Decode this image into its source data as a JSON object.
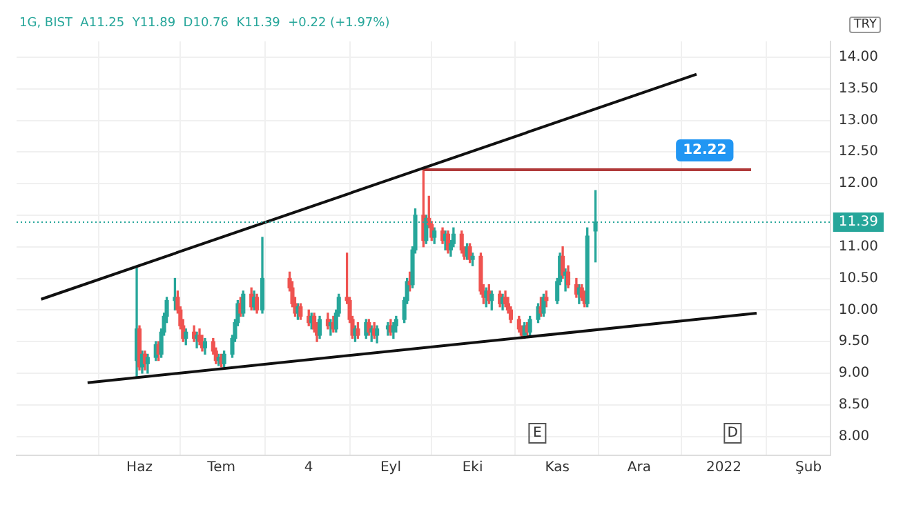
{
  "chart_data": {
    "type": "candlestick",
    "subtitle": "1G, BIST  A11.25  Y11.89  D10.76  K11.39  +0.22 (+1.97%)",
    "ylabel": "TRY",
    "x": [
      "2021-05-31",
      "2021-06-01",
      "2021-06-02",
      "2021-06-03",
      "2021-06-04",
      "2021-06-07",
      "2021-06-08",
      "2021-06-09",
      "2021-06-10",
      "2021-06-11",
      "2021-06-14",
      "2021-06-15",
      "2021-06-16",
      "2021-06-17",
      "2021-06-18",
      "2021-06-21",
      "2021-06-22",
      "2021-06-23",
      "2021-06-24",
      "2021-06-25",
      "2021-06-28",
      "2021-06-29",
      "2021-06-30",
      "2021-07-01",
      "2021-07-02",
      "2021-07-05",
      "2021-07-06",
      "2021-07-07",
      "2021-07-08",
      "2021-07-09",
      "2021-07-12",
      "2021-07-13",
      "2021-07-14",
      "2021-07-16",
      "2021-07-26",
      "2021-07-27",
      "2021-07-28",
      "2021-07-29",
      "2021-07-30",
      "2021-08-02",
      "2021-08-03",
      "2021-08-04",
      "2021-08-05",
      "2021-08-06",
      "2021-08-09",
      "2021-08-10",
      "2021-08-11",
      "2021-08-12",
      "2021-08-13",
      "2021-08-16",
      "2021-08-17",
      "2021-08-18",
      "2021-08-19",
      "2021-08-20",
      "2021-08-23",
      "2021-08-24",
      "2021-08-25",
      "2021-08-26",
      "2021-08-27",
      "2021-08-31",
      "2021-09-01",
      "2021-09-02",
      "2021-09-03",
      "2021-09-06",
      "2021-09-07",
      "2021-09-08",
      "2021-09-09",
      "2021-09-10",
      "2021-09-13",
      "2021-09-14",
      "2021-09-15",
      "2021-09-16",
      "2021-09-17",
      "2021-09-20",
      "2021-09-21",
      "2021-09-22",
      "2021-09-23",
      "2021-09-24",
      "2021-09-27",
      "2021-09-28",
      "2021-09-29",
      "2021-09-30",
      "2021-10-01",
      "2021-10-04",
      "2021-10-05",
      "2021-10-06",
      "2021-10-07",
      "2021-10-08",
      "2021-10-11",
      "2021-10-12",
      "2021-10-13",
      "2021-10-14",
      "2021-10-15",
      "2021-10-18",
      "2021-10-19",
      "2021-10-20",
      "2021-10-21",
      "2021-10-22",
      "2021-10-25",
      "2021-10-26",
      "2021-10-27",
      "2021-10-28",
      "2021-11-01",
      "2021-11-02",
      "2021-11-03",
      "2021-11-04",
      "2021-11-05",
      "2021-11-08",
      "2021-11-09",
      "2021-11-10",
      "2021-11-11",
      "2021-11-12",
      "2021-11-15"
    ],
    "ohlc": [
      [
        9.2,
        10.66,
        8.95,
        9.7
      ],
      [
        9.7,
        9.75,
        9.05,
        9.1
      ],
      [
        9.1,
        9.35,
        9.0,
        9.3
      ],
      [
        9.3,
        9.35,
        9.05,
        9.15
      ],
      [
        9.15,
        9.3,
        9.0,
        9.25
      ],
      [
        9.25,
        9.5,
        9.2,
        9.45
      ],
      [
        9.45,
        9.5,
        9.2,
        9.3
      ],
      [
        9.3,
        9.7,
        9.25,
        9.65
      ],
      [
        9.65,
        9.95,
        9.6,
        9.9
      ],
      [
        9.9,
        10.2,
        9.8,
        10.15
      ],
      [
        10.15,
        10.5,
        10.0,
        10.2
      ],
      [
        10.2,
        10.3,
        9.95,
        10.0
      ],
      [
        10.0,
        10.05,
        9.7,
        9.75
      ],
      [
        9.75,
        9.85,
        9.5,
        9.55
      ],
      [
        9.55,
        9.7,
        9.45,
        9.65
      ],
      [
        9.65,
        9.75,
        9.5,
        9.55
      ],
      [
        9.55,
        9.65,
        9.4,
        9.6
      ],
      [
        9.6,
        9.7,
        9.45,
        9.5
      ],
      [
        9.5,
        9.6,
        9.35,
        9.4
      ],
      [
        9.4,
        9.55,
        9.3,
        9.5
      ],
      [
        9.5,
        9.55,
        9.3,
        9.35
      ],
      [
        9.35,
        9.4,
        9.15,
        9.2
      ],
      [
        9.2,
        9.3,
        9.12,
        9.25
      ],
      [
        9.25,
        9.3,
        9.1,
        9.15
      ],
      [
        9.15,
        9.35,
        9.1,
        9.3
      ],
      [
        9.3,
        9.6,
        9.25,
        9.55
      ],
      [
        9.55,
        9.85,
        9.5,
        9.8
      ],
      [
        9.8,
        10.15,
        9.75,
        10.1
      ],
      [
        10.1,
        10.2,
        9.9,
        9.95
      ],
      [
        9.95,
        10.3,
        9.9,
        10.25
      ],
      [
        10.25,
        10.35,
        10.0,
        10.05
      ],
      [
        10.05,
        10.3,
        10.0,
        10.2
      ],
      [
        10.2,
        10.25,
        9.95,
        10.0
      ],
      [
        10.0,
        11.15,
        9.95,
        10.5
      ],
      [
        10.5,
        10.6,
        10.3,
        10.35
      ],
      [
        10.35,
        10.45,
        10.05,
        10.1
      ],
      [
        10.1,
        10.2,
        9.9,
        9.95
      ],
      [
        9.95,
        10.1,
        9.85,
        10.05
      ],
      [
        10.05,
        10.1,
        9.85,
        9.9
      ],
      [
        9.9,
        10.0,
        9.75,
        9.8
      ],
      [
        9.8,
        9.95,
        9.7,
        9.9
      ],
      [
        9.9,
        9.95,
        9.65,
        9.7
      ],
      [
        9.7,
        9.8,
        9.5,
        9.6
      ],
      [
        9.6,
        9.9,
        9.55,
        9.85
      ],
      [
        9.85,
        9.95,
        9.7,
        9.75
      ],
      [
        9.75,
        9.85,
        9.6,
        9.8
      ],
      [
        9.8,
        9.9,
        9.65,
        9.7
      ],
      [
        9.7,
        10.0,
        9.65,
        9.95
      ],
      [
        9.95,
        10.25,
        9.9,
        10.2
      ],
      [
        10.2,
        10.9,
        10.1,
        10.15
      ],
      [
        10.15,
        10.2,
        9.8,
        9.85
      ],
      [
        9.85,
        9.9,
        9.55,
        9.6
      ],
      [
        9.6,
        9.75,
        9.5,
        9.7
      ],
      [
        9.7,
        9.8,
        9.55,
        9.6
      ],
      [
        9.6,
        9.85,
        9.55,
        9.8
      ],
      [
        9.8,
        9.85,
        9.6,
        9.65
      ],
      [
        9.65,
        9.75,
        9.5,
        9.7
      ],
      [
        9.7,
        9.8,
        9.55,
        9.6
      ],
      [
        9.6,
        9.75,
        9.48,
        9.7
      ],
      [
        9.7,
        9.8,
        9.6,
        9.75
      ],
      [
        9.75,
        9.85,
        9.6,
        9.65
      ],
      [
        9.65,
        9.8,
        9.55,
        9.75
      ],
      [
        9.75,
        9.9,
        9.65,
        9.85
      ],
      [
        9.85,
        10.2,
        9.8,
        10.15
      ],
      [
        10.15,
        10.5,
        10.1,
        10.45
      ],
      [
        10.45,
        10.6,
        10.3,
        10.4
      ],
      [
        10.4,
        11.0,
        10.35,
        10.95
      ],
      [
        10.95,
        11.6,
        10.9,
        11.5
      ],
      [
        11.5,
        12.22,
        11.0,
        11.1
      ],
      [
        11.1,
        11.5,
        11.05,
        11.45
      ],
      [
        11.45,
        11.8,
        11.3,
        11.35
      ],
      [
        11.35,
        11.4,
        11.1,
        11.15
      ],
      [
        11.15,
        11.3,
        11.05,
        11.25
      ],
      [
        11.25,
        11.3,
        11.05,
        11.1
      ],
      [
        11.1,
        11.25,
        10.95,
        11.2
      ],
      [
        11.2,
        11.25,
        10.9,
        10.95
      ],
      [
        10.95,
        11.1,
        10.85,
        11.05
      ],
      [
        11.05,
        11.3,
        11.0,
        11.2
      ],
      [
        11.2,
        11.25,
        10.9,
        10.95
      ],
      [
        10.95,
        11.0,
        10.8,
        10.85
      ],
      [
        10.85,
        11.05,
        10.8,
        11.0
      ],
      [
        11.0,
        11.05,
        10.75,
        10.8
      ],
      [
        10.8,
        10.9,
        10.7,
        10.85
      ],
      [
        10.85,
        10.9,
        10.25,
        10.3
      ],
      [
        10.3,
        10.4,
        10.1,
        10.2
      ],
      [
        10.2,
        10.35,
        10.05,
        10.3
      ],
      [
        10.3,
        10.4,
        10.1,
        10.15
      ],
      [
        10.15,
        10.3,
        10.0,
        10.25
      ],
      [
        10.25,
        10.3,
        10.05,
        10.1
      ],
      [
        10.1,
        10.25,
        10.0,
        10.2
      ],
      [
        10.2,
        10.3,
        10.05,
        10.1
      ],
      [
        10.1,
        10.2,
        9.95,
        10.0
      ],
      [
        10.0,
        10.05,
        9.8,
        9.85
      ],
      [
        9.85,
        9.9,
        9.65,
        9.7
      ],
      [
        9.7,
        9.75,
        9.55,
        9.6
      ],
      [
        9.6,
        9.8,
        9.55,
        9.75
      ],
      [
        9.75,
        9.8,
        9.6,
        9.65
      ],
      [
        9.65,
        9.9,
        9.6,
        9.85
      ],
      [
        9.85,
        10.1,
        9.8,
        10.05
      ],
      [
        10.05,
        10.2,
        9.9,
        9.95
      ],
      [
        9.95,
        10.25,
        9.9,
        10.2
      ],
      [
        10.2,
        10.3,
        10.05,
        10.15
      ],
      [
        10.15,
        10.5,
        10.1,
        10.45
      ],
      [
        10.45,
        10.9,
        10.4,
        10.85
      ],
      [
        10.85,
        11.0,
        10.5,
        10.55
      ],
      [
        10.55,
        10.65,
        10.3,
        10.6
      ],
      [
        10.6,
        10.7,
        10.35,
        10.4
      ],
      [
        10.4,
        10.5,
        10.2,
        10.25
      ],
      [
        10.25,
        10.4,
        10.1,
        10.35
      ],
      [
        10.35,
        10.4,
        10.15,
        10.2
      ],
      [
        10.2,
        10.3,
        10.05,
        10.1
      ],
      [
        10.1,
        11.3,
        10.05,
        11.17
      ],
      [
        11.25,
        11.89,
        10.76,
        11.39
      ]
    ],
    "series": [
      {
        "type": "line",
        "color": "#111111",
        "x": [
          "2021-04-26",
          "2021-12-22"
        ],
        "values": [
          10.17,
          13.73
        ]
      },
      {
        "type": "line",
        "color": "#111111",
        "x": [
          "2021-05-13",
          "2022-01-13"
        ],
        "values": [
          8.85,
          9.95
        ]
      },
      {
        "type": "line",
        "color": "#b03a3a",
        "x": [
          "2021-09-13",
          "2022-01-11"
        ],
        "values": [
          12.22,
          12.22
        ]
      }
    ],
    "ref_lines": [
      {
        "axis": "y",
        "value": 11.39,
        "label": "11.39",
        "color": "#26a69a",
        "line_style": "dotted"
      }
    ],
    "annotations": [
      {
        "text": "12.22",
        "x": "2021-12-25",
        "y": 12.22
      },
      "E",
      "D"
    ],
    "xlim": [
      "2021-04-17",
      "2022-02-09"
    ],
    "xticks": [
      {
        "value": "2021-06-01",
        "label": "Haz"
      },
      {
        "value": "2021-07-01",
        "label": "Tem"
      },
      {
        "value": "2021-08-02",
        "label": "4"
      },
      {
        "value": "2021-09-01",
        "label": "Eyl"
      },
      {
        "value": "2021-10-01",
        "label": "Eki"
      },
      {
        "value": "2021-11-01",
        "label": "Kas"
      },
      {
        "value": "2021-12-01",
        "label": "Ara"
      },
      {
        "value": "2022-01-01",
        "label": "2022"
      },
      {
        "value": "2022-02-01",
        "label": "Şub"
      }
    ],
    "ylim": [
      7.7,
      14.25
    ],
    "yticks": [
      {
        "value": 8,
        "label": "8.00"
      },
      {
        "value": 8.5,
        "label": "8.50"
      },
      {
        "value": 9,
        "label": "9.00"
      },
      {
        "value": 9.5,
        "label": "9.50"
      },
      {
        "value": 10,
        "label": "10.00"
      },
      {
        "value": 10.5,
        "label": "10.50"
      },
      {
        "value": 11,
        "label": "11.00"
      },
      {
        "value": 11.5,
        "label": null
      },
      {
        "value": 12,
        "label": "12.00"
      },
      {
        "value": 12.5,
        "label": "12.50"
      },
      {
        "value": 13,
        "label": "13.00"
      },
      {
        "value": 13.5,
        "label": "13.50"
      },
      {
        "value": 14,
        "label": "14.00"
      }
    ],
    "grid": true,
    "legend": false
  }
}
